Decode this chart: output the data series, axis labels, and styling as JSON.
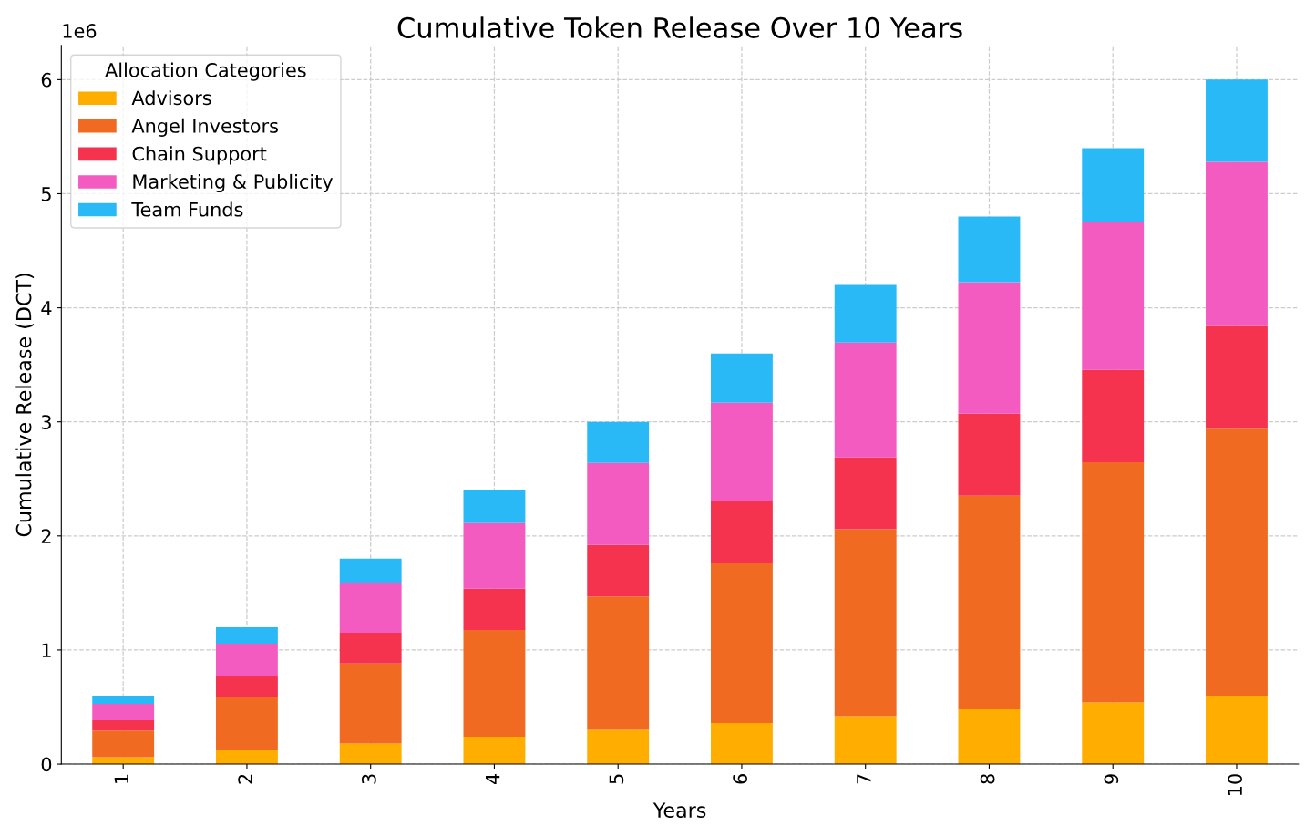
{
  "chart_data": {
    "type": "bar",
    "stacked": true,
    "title": "Cumulative Token Release Over 10 Years",
    "xlabel": "Years",
    "ylabel": "Cumulative Release (DCT)",
    "legend_title": "Allocation Categories",
    "legend": "top left",
    "grid": true,
    "annotations": [
      "1e6"
    ],
    "categories": [
      "1",
      "2",
      "3",
      "4",
      "5",
      "6",
      "7",
      "8",
      "9",
      "10"
    ],
    "ylim": [
      0,
      6.3
    ],
    "yticks": [
      0,
      1,
      2,
      3,
      4,
      5,
      6
    ],
    "series": [
      {
        "name": "Advisors",
        "color": "#ffae00",
        "values": [
          0.06,
          0.12,
          0.18,
          0.24,
          0.3,
          0.36,
          0.42,
          0.48,
          0.54,
          0.6
        ]
      },
      {
        "name": "Angel Investors",
        "color": "#f06a22",
        "values": [
          0.234,
          0.468,
          0.702,
          0.936,
          1.17,
          1.404,
          1.638,
          1.872,
          2.106,
          2.34
        ]
      },
      {
        "name": "Chain Support",
        "color": "#f5334f",
        "values": [
          0.09,
          0.18,
          0.27,
          0.36,
          0.45,
          0.54,
          0.63,
          0.72,
          0.81,
          0.9
        ]
      },
      {
        "name": "Marketing & Publicity",
        "color": "#f45bc0",
        "values": [
          0.144,
          0.288,
          0.432,
          0.576,
          0.72,
          0.864,
          1.008,
          1.152,
          1.296,
          1.44
        ]
      },
      {
        "name": "Team Funds",
        "color": "#29b9f7",
        "values": [
          0.072,
          0.144,
          0.216,
          0.288,
          0.36,
          0.432,
          0.504,
          0.576,
          0.648,
          0.72
        ]
      }
    ]
  }
}
